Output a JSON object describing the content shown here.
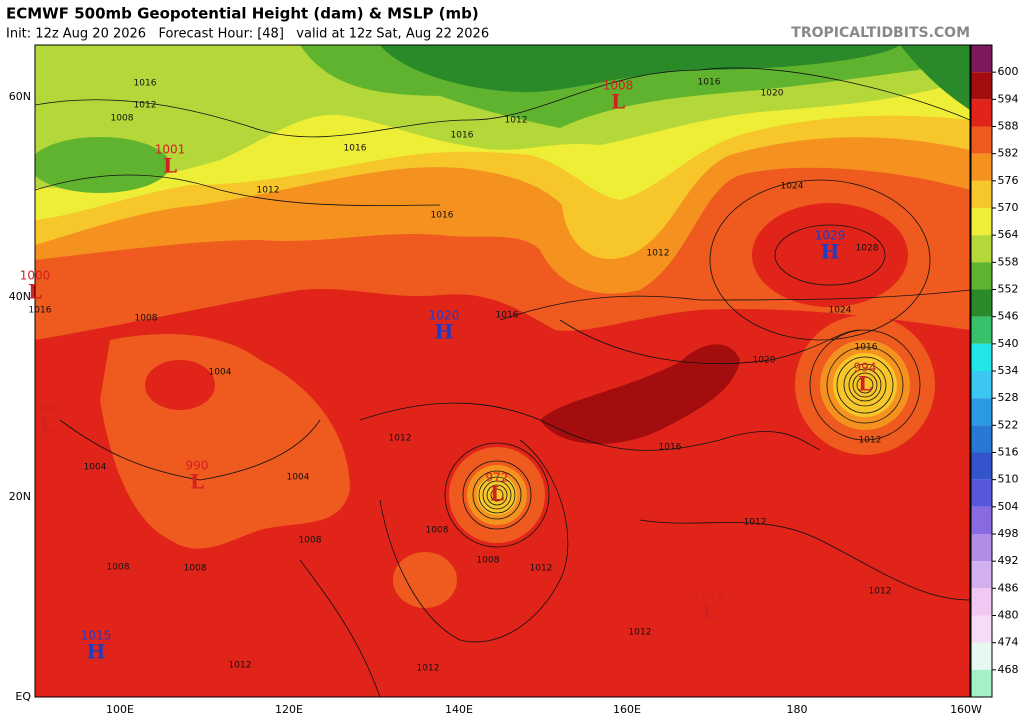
{
  "header": {
    "title": "ECMWF 500mb Geopotential Height (dam) & MSLP (mb)",
    "subtitle": "Init: 12z Aug 20 2026   Forecast Hour: [48]   valid at 12z Sat, Aug 22 2026",
    "watermark": "TROPICALTIDBITS.COM"
  },
  "map": {
    "lat_labels": [
      "60N",
      "40N",
      "20N",
      "EQ"
    ],
    "lon_labels": [
      "100E",
      "120E",
      "140E",
      "160E",
      "180",
      "160W"
    ],
    "centers": [
      {
        "type": "L",
        "pressure": 1008
      },
      {
        "type": "L",
        "pressure": 1001
      },
      {
        "type": "L",
        "pressure": 1000
      },
      {
        "type": "H",
        "pressure": 1020
      },
      {
        "type": "H",
        "pressure": 1029
      },
      {
        "type": "L",
        "pressure": 994
      },
      {
        "type": "L",
        "pressure": 999
      },
      {
        "type": "L",
        "pressure": 972
      },
      {
        "type": "L",
        "pressure": 990
      },
      {
        "type": "L",
        "pressure": 1010
      },
      {
        "type": "H",
        "pressure": 1015
      }
    ],
    "isobar_labels": [
      1016,
      1012,
      1008,
      1016,
      1012,
      1016,
      1012,
      1016,
      1020,
      1024,
      1028,
      1012,
      1016,
      1016,
      1024,
      1020,
      1016,
      1012,
      1016,
      1012,
      1008,
      1008,
      1012,
      1012,
      1012,
      1012,
      1012,
      1004,
      1008,
      1008,
      1012,
      1004,
      1008,
      1016,
      1008,
      1004
    ]
  },
  "colorbar": {
    "levels": [
      600,
      594,
      588,
      582,
      576,
      570,
      564,
      558,
      552,
      546,
      540,
      534,
      528,
      522,
      516,
      510,
      504,
      498,
      492,
      486,
      480,
      474,
      468
    ],
    "colors": [
      "#7d1a5c",
      "#a30d0d",
      "#e02419",
      "#ef5a1e",
      "#f5911f",
      "#f6c62a",
      "#eeee36",
      "#b4d83a",
      "#5fb32e",
      "#2a8a2a",
      "#39c06a",
      "#22e6e6",
      "#3cc6f2",
      "#2c9ae2",
      "#2a78d6",
      "#3454cc",
      "#5858dc",
      "#8a6ae0",
      "#b08ee8",
      "#d2b0f0",
      "#f2c8f2",
      "#f6dcf6",
      "#e6f8f0",
      "#a6f0c8"
    ]
  }
}
